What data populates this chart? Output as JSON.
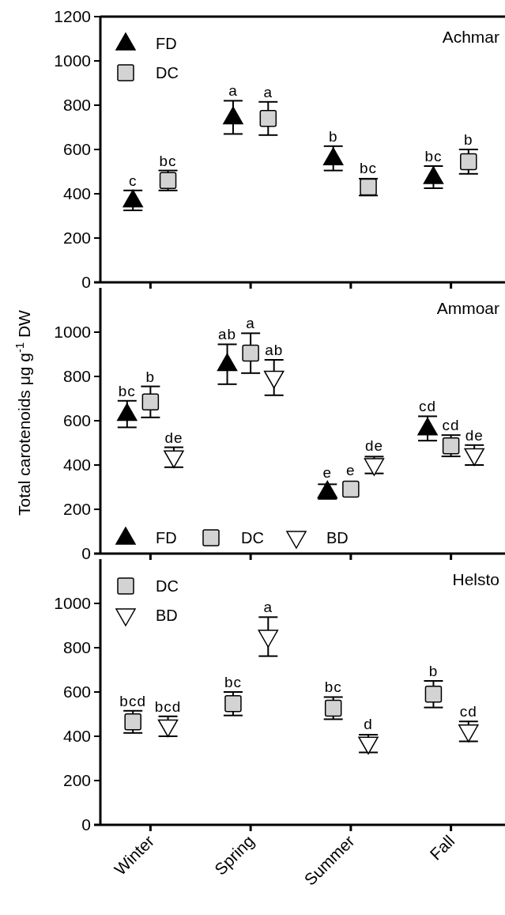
{
  "chart_data": [
    {
      "type": "scatter",
      "title": "Achmar",
      "categories": [
        null,
        null,
        null,
        null
      ],
      "ylim": [
        0,
        1200
      ],
      "yticks": [
        0,
        200,
        400,
        600,
        800,
        1000,
        1200
      ],
      "tick_labels": "y",
      "legend": "top left",
      "series": [
        {
          "name": "FD",
          "color": "#000000",
          "marker": "triangle",
          "values": [
            370,
            745,
            560,
            475
          ],
          "errors": [
            45,
            75,
            55,
            50
          ],
          "value_labels": [
            "c",
            "a",
            "b",
            "bc"
          ]
        },
        {
          "name": "DC",
          "color": "#d3d3d3",
          "marker": "square",
          "values": [
            460,
            740,
            430,
            545
          ],
          "errors": [
            45,
            75,
            38,
            55
          ],
          "value_labels": [
            "bc",
            "a",
            "bc",
            "b"
          ]
        }
      ]
    },
    {
      "type": "scatter",
      "title": "Ammoar",
      "ylabel": "Total carotenoids μg g$^{-1}$ DW",
      "categories": [
        null,
        null,
        null,
        null
      ],
      "ylim": [
        0,
        1200
      ],
      "yticks": [
        0,
        200,
        400,
        600,
        800,
        1000
      ],
      "tick_labels": "y",
      "legend": "bottom",
      "series": [
        {
          "name": "FD",
          "color": "#000000",
          "marker": "triangle",
          "values": [
            630,
            855,
            280,
            565
          ],
          "errors": [
            60,
            90,
            33,
            55
          ],
          "value_labels": [
            "bc",
            "ab",
            "e",
            "cd"
          ]
        },
        {
          "name": "DC",
          "color": "#d3d3d3",
          "marker": "square",
          "values": [
            685,
            905,
            291,
            487
          ],
          "errors": [
            70,
            90,
            null,
            48
          ],
          "value_labels": [
            "b",
            "a",
            "e",
            "cd"
          ]
        },
        {
          "name": "BD",
          "color": "#ffffff",
          "marker": "triangle-down",
          "values": [
            435,
            795,
            400,
            445
          ],
          "errors": [
            45,
            80,
            38,
            45
          ],
          "value_labels": [
            "de",
            "ab",
            "de",
            "de"
          ]
        }
      ]
    },
    {
      "type": "scatter",
      "title": "Helsto",
      "categories": [
        "Winter",
        "Spring",
        "Summer",
        "Fall"
      ],
      "ylim": [
        0,
        1200
      ],
      "yticks": [
        0,
        200,
        400,
        600,
        800,
        1000
      ],
      "legend": "top left",
      "series": [
        {
          "name": "DC",
          "color": "#d3d3d3",
          "marker": "square",
          "values": [
            465,
            547,
            527,
            590
          ],
          "errors": [
            50,
            53,
            50,
            60
          ],
          "value_labels": [
            "bcd",
            "bc",
            "bc",
            "b"
          ]
        },
        {
          "name": "BD",
          "color": "#ffffff",
          "marker": "triangle-down",
          "values": [
            445,
            850,
            367,
            422
          ],
          "errors": [
            45,
            88,
            40,
            45
          ],
          "value_labels": [
            "bcd",
            "a",
            "d",
            "cd"
          ]
        }
      ]
    }
  ]
}
